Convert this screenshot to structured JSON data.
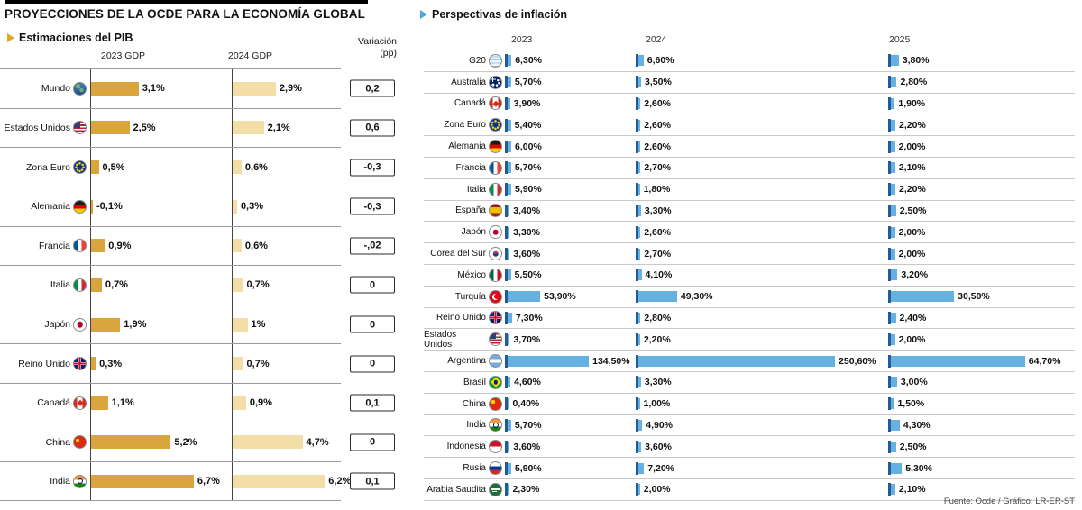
{
  "page": {
    "title": "PROYECCIONES DE LA OCDE PARA LA ECONOMÍA GLOBAL",
    "source": "Fuente: Ocde / Gráfico: LR-ER-ST"
  },
  "colors": {
    "gdp2023": "#d9a53c",
    "gdp2024": "#f2dea6",
    "inflation": "#66b1e0",
    "inflationTick": "#1f5c99",
    "accentYellow": "#e4a81f",
    "accentBlue": "#54a7dc"
  },
  "gdp": {
    "section_title": "Estimaciones del PIB",
    "col_headers": [
      "2023 GDP",
      "2024 GDP"
    ],
    "variation_header_line1": "Variación",
    "variation_header_line2": "(pp)",
    "rows": [
      {
        "country": "Mundo",
        "flag": "world",
        "v2023": 3.1,
        "l2023": "3,1%",
        "v2024": 2.9,
        "l2024": "2,9%",
        "variation": "0,2"
      },
      {
        "country": "Estados Unidos",
        "flag": "us",
        "v2023": 2.5,
        "l2023": "2,5%",
        "v2024": 2.1,
        "l2024": "2,1%",
        "variation": "0,6"
      },
      {
        "country": "Zona Euro",
        "flag": "eu",
        "v2023": 0.5,
        "l2023": "0,5%",
        "v2024": 0.6,
        "l2024": "0,6%",
        "variation": "-0,3"
      },
      {
        "country": "Alemania",
        "flag": "de",
        "v2023": -0.1,
        "l2023": "-0,1%",
        "v2024": 0.3,
        "l2024": "0,3%",
        "variation": "-0,3"
      },
      {
        "country": "Francia",
        "flag": "fr",
        "v2023": 0.9,
        "l2023": "0,9%",
        "v2024": 0.6,
        "l2024": "0,6%",
        "variation": "-,02"
      },
      {
        "country": "Italia",
        "flag": "it",
        "v2023": 0.7,
        "l2023": "0,7%",
        "v2024": 0.7,
        "l2024": "0,7%",
        "variation": "0"
      },
      {
        "country": "Japón",
        "flag": "jp",
        "v2023": 1.9,
        "l2023": "1,9%",
        "v2024": 1.0,
        "l2024": "1%",
        "variation": "0"
      },
      {
        "country": "Reino Unido",
        "flag": "uk",
        "v2023": 0.3,
        "l2023": "0,3%",
        "v2024": 0.7,
        "l2024": "0,7%",
        "variation": "0"
      },
      {
        "country": "Canadá",
        "flag": "ca",
        "v2023": 1.1,
        "l2023": "1,1%",
        "v2024": 0.9,
        "l2024": "0,9%",
        "variation": "0,1"
      },
      {
        "country": "China",
        "flag": "cn",
        "v2023": 5.2,
        "l2023": "5,2%",
        "v2024": 4.7,
        "l2024": "4,7%",
        "variation": "0"
      },
      {
        "country": "India",
        "flag": "in",
        "v2023": 6.7,
        "l2023": "6,7%",
        "v2024": 6.2,
        "l2024": "6,2%",
        "variation": "0,1"
      }
    ]
  },
  "inflation": {
    "section_title": "Perspectivas de inflación",
    "years": [
      "2023",
      "2024",
      "2025"
    ],
    "rows": [
      {
        "country": "G20",
        "flag": "g20",
        "values": [
          6.3,
          6.6,
          3.8
        ],
        "labels": [
          "6,30%",
          "6,60%",
          "3,80%"
        ]
      },
      {
        "country": "Australia",
        "flag": "au",
        "values": [
          5.7,
          3.5,
          2.8
        ],
        "labels": [
          "5,70%",
          "3,50%",
          "2,80%"
        ]
      },
      {
        "country": "Canadá",
        "flag": "ca",
        "values": [
          3.9,
          2.6,
          1.9
        ],
        "labels": [
          "3,90%",
          "2,60%",
          "1,90%"
        ]
      },
      {
        "country": "Zona Euro",
        "flag": "eu",
        "values": [
          5.4,
          2.6,
          2.2
        ],
        "labels": [
          "5,40%",
          "2,60%",
          "2,20%"
        ]
      },
      {
        "country": "Alemania",
        "flag": "de",
        "values": [
          6.0,
          2.6,
          2.0
        ],
        "labels": [
          "6,00%",
          "2,60%",
          "2,00%"
        ]
      },
      {
        "country": "Francia",
        "flag": "fr",
        "values": [
          5.7,
          2.7,
          2.1
        ],
        "labels": [
          "5,70%",
          "2,70%",
          "2,10%"
        ]
      },
      {
        "country": "Italia",
        "flag": "it",
        "values": [
          5.9,
          1.8,
          2.2
        ],
        "labels": [
          "5,90%",
          "1,80%",
          "2,20%"
        ]
      },
      {
        "country": "España",
        "flag": "es",
        "values": [
          3.4,
          3.3,
          2.5
        ],
        "labels": [
          "3,40%",
          "3,30%",
          "2,50%"
        ]
      },
      {
        "country": "Japón",
        "flag": "jp",
        "values": [
          3.3,
          2.6,
          2.0
        ],
        "labels": [
          "3,30%",
          "2,60%",
          "2,00%"
        ]
      },
      {
        "country": "Corea del Sur",
        "flag": "kr",
        "values": [
          3.6,
          2.7,
          2.0
        ],
        "labels": [
          "3,60%",
          "2,70%",
          "2,00%"
        ]
      },
      {
        "country": "México",
        "flag": "mx",
        "values": [
          5.5,
          4.1,
          3.2
        ],
        "labels": [
          "5,50%",
          "4,10%",
          "3,20%"
        ]
      },
      {
        "country": "Turquía",
        "flag": "tr",
        "values": [
          53.9,
          49.3,
          30.5
        ],
        "labels": [
          "53,90%",
          "49,30%",
          "30,50%"
        ]
      },
      {
        "country": "Reino Unido",
        "flag": "uk",
        "values": [
          7.3,
          2.8,
          2.4
        ],
        "labels": [
          "7,30%",
          "2,80%",
          "2,40%"
        ]
      },
      {
        "country": "Estados Unidos",
        "flag": "us",
        "values": [
          3.7,
          2.2,
          2.0
        ],
        "labels": [
          "3,70%",
          "2,20%",
          "2,00%"
        ]
      },
      {
        "country": "Argentina",
        "flag": "ar",
        "values": [
          134.5,
          250.6,
          64.7
        ],
        "labels": [
          "134,50%",
          "250,60%",
          "64,70%"
        ]
      },
      {
        "country": "Brasil",
        "flag": "br",
        "values": [
          4.6,
          3.3,
          3.0
        ],
        "labels": [
          "4,60%",
          "3,30%",
          "3,00%"
        ]
      },
      {
        "country": "China",
        "flag": "cn",
        "values": [
          0.4,
          1.0,
          1.5
        ],
        "labels": [
          "0,40%",
          "1,00%",
          "1,50%"
        ]
      },
      {
        "country": "India",
        "flag": "in",
        "values": [
          5.7,
          4.9,
          4.3
        ],
        "labels": [
          "5,70%",
          "4,90%",
          "4,30%"
        ]
      },
      {
        "country": "Indonesia",
        "flag": "id",
        "values": [
          3.6,
          3.6,
          2.5
        ],
        "labels": [
          "3,60%",
          "3,60%",
          "2,50%"
        ]
      },
      {
        "country": "Rusia",
        "flag": "ru",
        "values": [
          5.9,
          7.2,
          5.3
        ],
        "labels": [
          "5,90%",
          "7,20%",
          "5,30%"
        ]
      },
      {
        "country": "Arabia Saudita",
        "flag": "sa",
        "values": [
          2.3,
          2.0,
          2.1
        ],
        "labels": [
          "2,30%",
          "2,00%",
          "2,10%"
        ]
      }
    ]
  },
  "chart_data": [
    {
      "type": "bar",
      "orientation": "horizontal",
      "title": "Estimaciones del PIB",
      "unit": "%",
      "categories": [
        "Mundo",
        "Estados Unidos",
        "Zona Euro",
        "Alemania",
        "Francia",
        "Italia",
        "Japón",
        "Reino Unido",
        "Canadá",
        "China",
        "India"
      ],
      "series": [
        {
          "name": "2023 GDP",
          "values": [
            3.1,
            2.5,
            0.5,
            -0.1,
            0.9,
            0.7,
            1.9,
            0.3,
            1.1,
            5.2,
            6.7
          ]
        },
        {
          "name": "2024 GDP",
          "values": [
            2.9,
            2.1,
            0.6,
            0.3,
            0.6,
            0.7,
            1.0,
            0.7,
            0.9,
            4.7,
            6.2
          ]
        },
        {
          "name": "Variación (pp)",
          "values": [
            0.2,
            0.6,
            -0.3,
            -0.3,
            -0.02,
            0,
            0,
            0,
            0.1,
            0,
            0.1
          ]
        }
      ]
    },
    {
      "type": "bar",
      "orientation": "horizontal",
      "title": "Perspectivas de inflación",
      "unit": "%",
      "categories": [
        "G20",
        "Australia",
        "Canadá",
        "Zona Euro",
        "Alemania",
        "Francia",
        "Italia",
        "España",
        "Japón",
        "Corea del Sur",
        "México",
        "Turquía",
        "Reino Unido",
        "Estados Unidos",
        "Argentina",
        "Brasil",
        "China",
        "India",
        "Indonesia",
        "Rusia",
        "Arabia Saudita"
      ],
      "series": [
        {
          "name": "2023",
          "values": [
            6.3,
            5.7,
            3.9,
            5.4,
            6.0,
            5.7,
            5.9,
            3.4,
            3.3,
            3.6,
            5.5,
            53.9,
            7.3,
            3.7,
            134.5,
            4.6,
            0.4,
            5.7,
            3.6,
            5.9,
            2.3
          ]
        },
        {
          "name": "2024",
          "values": [
            6.6,
            3.5,
            2.6,
            2.6,
            2.6,
            2.7,
            1.8,
            3.3,
            2.6,
            2.7,
            4.1,
            49.3,
            2.8,
            2.2,
            250.6,
            3.3,
            1.0,
            4.9,
            3.6,
            7.2,
            2.0
          ]
        },
        {
          "name": "2025",
          "values": [
            3.8,
            2.8,
            1.9,
            2.2,
            2.0,
            2.1,
            2.2,
            2.5,
            2.0,
            2.0,
            3.2,
            30.5,
            2.4,
            2.0,
            64.7,
            3.0,
            1.5,
            4.3,
            2.5,
            5.3,
            2.1
          ]
        }
      ]
    }
  ]
}
